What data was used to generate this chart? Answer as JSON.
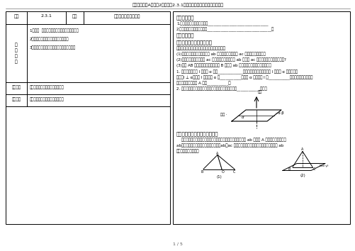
{
  "title": "高中数学人教A版必修2导学案：2.3.1直线和平面垂直的判定（学生版）",
  "page_num": "1 / 5",
  "bg_color": "#ffffff",
  "border_color": "#000000",
  "text_color": "#000000"
}
